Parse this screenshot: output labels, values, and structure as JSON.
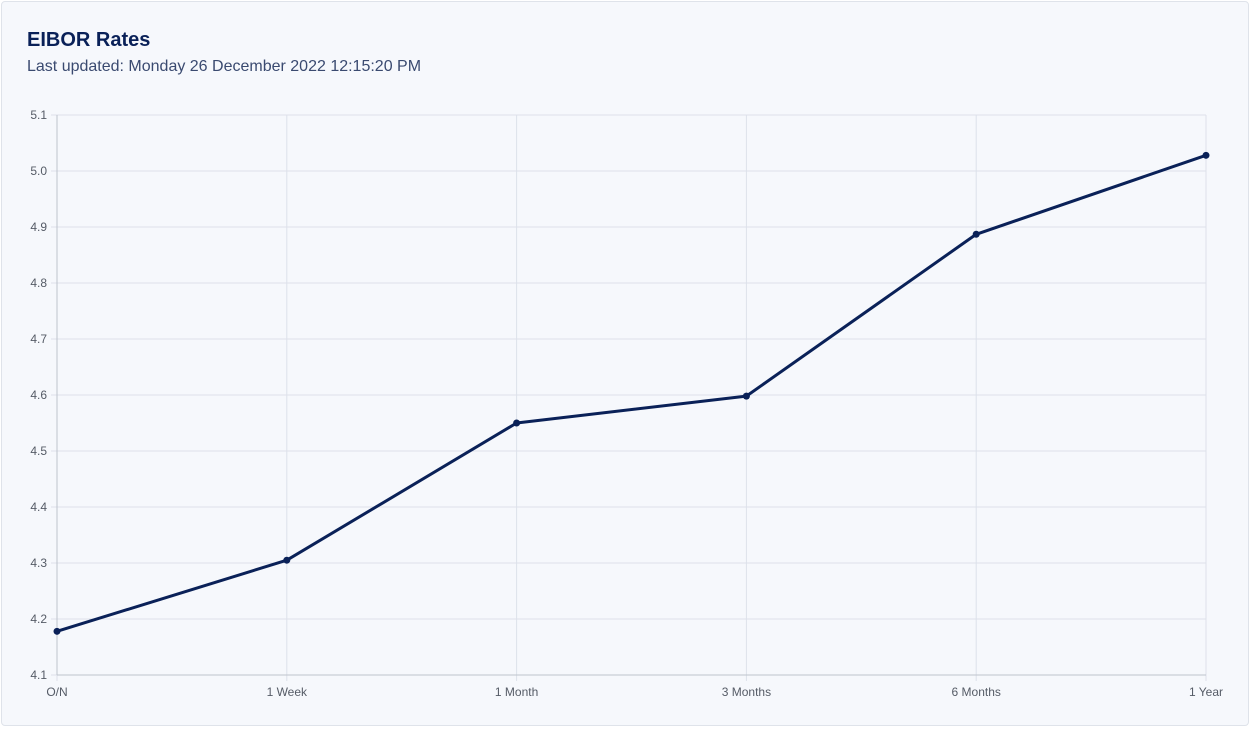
{
  "header": {
    "title": "EIBOR Rates",
    "subtitle": "Last updated: Monday 26 December 2022 12:15:20 PM"
  },
  "colors": {
    "line": "#0a2158",
    "grid": "#dde1ea",
    "axis": "#bfc4cd"
  },
  "chart_data": {
    "type": "line",
    "title": "",
    "xlabel": "",
    "ylabel": "",
    "categories": [
      "O/N",
      "1 Week",
      "1 Month",
      "3 Months",
      "6 Months",
      "1 Year"
    ],
    "values": [
      4.178,
      4.305,
      4.55,
      4.598,
      4.887,
      5.028
    ],
    "ylim": [
      4.1,
      5.1
    ],
    "yticks": [
      "4.1",
      "4.2",
      "4.3",
      "4.4",
      "4.5",
      "4.6",
      "4.7",
      "4.8",
      "4.9",
      "5.0",
      "5.1"
    ],
    "grid": true,
    "legend": "none"
  }
}
